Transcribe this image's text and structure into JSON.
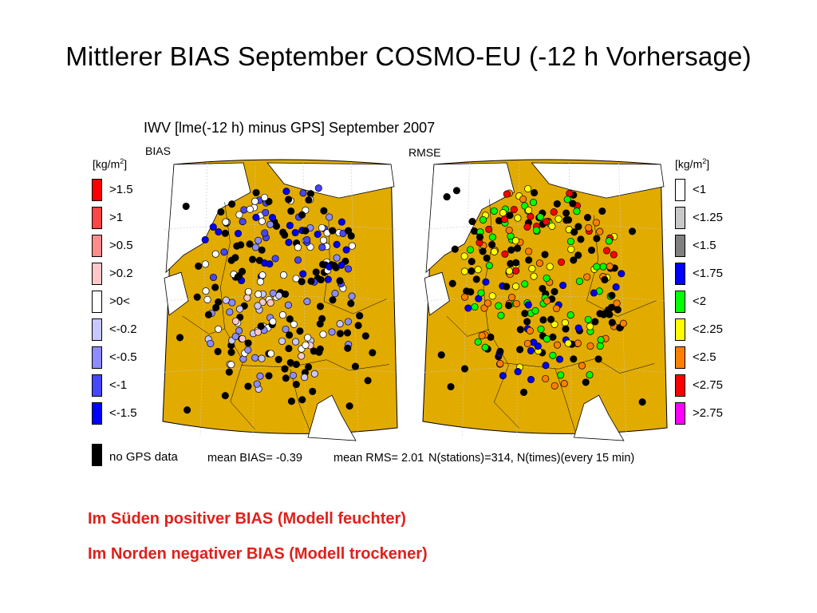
{
  "slide_title": "Mittlerer BIAS September COSMO-EU (-12 h Vorhersage)",
  "figure": {
    "title": "IWV [lme(-12 h) minus GPS] September 2007",
    "left_panel_label": "BIAS",
    "right_panel_label": "RMSE",
    "unit_prefix": "[kg/m",
    "unit_exp": "2",
    "unit_suffix": "]"
  },
  "bias_legend": [
    {
      "label": ">1.5",
      "color": "#ff0000"
    },
    {
      "label": ">1",
      "color": "#ff4646"
    },
    {
      "label": ">0.5",
      "color": "#ff8c8c"
    },
    {
      "label": ">0.2",
      "color": "#ffc8c8"
    },
    {
      "label": ">0<",
      "color": "#ffffff"
    },
    {
      "label": "<-0.2",
      "color": "#c8c8ff"
    },
    {
      "label": "<-0.5",
      "color": "#8c8cff"
    },
    {
      "label": "<-1",
      "color": "#4646ff"
    },
    {
      "label": "<-1.5",
      "color": "#0000ff"
    }
  ],
  "no_data": {
    "label": "no GPS data",
    "color": "#000000"
  },
  "rmse_legend": [
    {
      "label": "<1",
      "color": "#ffffff"
    },
    {
      "label": "<1.25",
      "color": "#c8c8c8"
    },
    {
      "label": "<1.5",
      "color": "#808080"
    },
    {
      "label": "<1.75",
      "color": "#0000ff"
    },
    {
      "label": "<2",
      "color": "#00ff00"
    },
    {
      "label": "<2.25",
      "color": "#ffff00"
    },
    {
      "label": "<2.5",
      "color": "#ff8000"
    },
    {
      "label": "<2.75",
      "color": "#ff0000"
    },
    {
      "label": ">2.75",
      "color": "#ff00ff"
    }
  ],
  "stats": {
    "mean_bias": "mean BIAS= -0.39",
    "mean_rms": "mean RMS= 2.01",
    "stations": "N(stations)=314, N(times)(every 15 min)"
  },
  "notes": [
    "Im Süden positiver BIAS (Modell feuchter)",
    "Im Norden negativer BIAS (Modell trockener)"
  ],
  "map_colors": {
    "land": "#e2ab00",
    "sea": "#ffffff",
    "border": "#000000",
    "grid": "#c8c8c8"
  }
}
